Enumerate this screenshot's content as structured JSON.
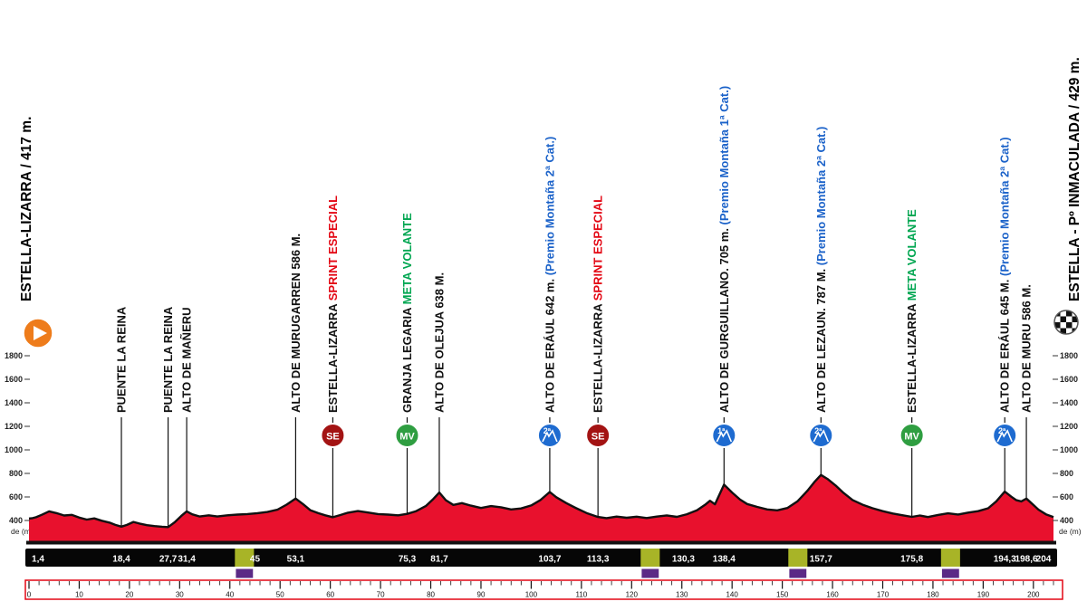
{
  "palette": {
    "profile_fill": "#e8112d",
    "profile_stroke": "#111111",
    "sprint_color": "#e30613",
    "sprint_badge": "#a31313",
    "meta_volante_color": "#00a651",
    "meta_badge": "#2f9e41",
    "mountain_color": "#1b62c9",
    "mountain_badge": "#1e6bd0",
    "feed_zone": "#a8b427",
    "tunnel": "#5b2a86",
    "ruler_border": "#e30613",
    "start_icon": "#ee7c1b"
  },
  "start": {
    "label": "ESTELLA-LIZARRA / 417 m."
  },
  "finish": {
    "label": "ESTELLA - Pº INMACULADA / 429 m."
  },
  "axis": {
    "unit_label": "de (m)",
    "ticks": [
      {
        "label": "1800",
        "value": 1800
      },
      {
        "label": "1600",
        "value": 1600
      },
      {
        "label": "1400",
        "value": 1400
      },
      {
        "label": "1200",
        "value": 1200
      },
      {
        "label": "1000",
        "value": 1000
      },
      {
        "label": "800",
        "value": 800
      },
      {
        "label": "600",
        "value": 600
      },
      {
        "label": "400",
        "value": 400
      }
    ]
  },
  "waypoints": [
    {
      "label": "PUENTE LA REINA",
      "sublabel": "",
      "type": "town",
      "badge": null,
      "km": 18.4
    },
    {
      "label": "PUENTE LA REINA",
      "sublabel": "",
      "type": "town",
      "badge": null,
      "km": 27.7
    },
    {
      "label": "ALTO DE MAÑERU",
      "sublabel": "",
      "type": "town",
      "badge": null,
      "km": 31.4
    },
    {
      "label": "ALTO DE MURUGARREN 586 M.",
      "sublabel": "",
      "type": "town",
      "badge": null,
      "km": 53.1
    },
    {
      "label": "ESTELLA-LIZARRA",
      "sublabel": "SPRINT ESPECIAL",
      "type": "sprint",
      "badge": "SE",
      "km": 60.5
    },
    {
      "label": "GRANJA LEGARIA",
      "sublabel": "META VOLANTE",
      "type": "meta",
      "badge": "MV",
      "km": 75.3
    },
    {
      "label": "ALTO DE OLEJUA 638 M.",
      "sublabel": "",
      "type": "town",
      "badge": null,
      "km": 81.7
    },
    {
      "label": "ALTO DE ERÁUL 642 m.",
      "sublabel": "(Premio Montaña 2ª Cat.)",
      "type": "mountain",
      "badge": "2ª",
      "km": 103.7
    },
    {
      "label": "ESTELLA-LIZARRA",
      "sublabel": "SPRINT ESPECIAL",
      "type": "sprint",
      "badge": "SE",
      "km": 113.3
    },
    {
      "label": "ALTO DE GURGUILLANO. 705 m.",
      "sublabel": "(Premio Montaña 1ª Cat.)",
      "type": "mountain",
      "badge": "1ª",
      "km": 138.4
    },
    {
      "label": "ALTO DE LEZAUN. 787 M.",
      "sublabel": "(Premio Montaña 2ª Cat.)",
      "type": "mountain",
      "badge": "2ª",
      "km": 157.7
    },
    {
      "label": "ESTELLA-LIZARRA",
      "sublabel": "META VOLANTE",
      "type": "meta",
      "badge": "MV",
      "km": 175.8
    },
    {
      "label": "ALTO DE ERÁUL 645 M.",
      "sublabel": "(Premio Montaña 2ª Cat.)",
      "type": "mountain",
      "badge": "2ª",
      "km": 194.3
    },
    {
      "label": "ALTO DE MURU 586 M.",
      "sublabel": "",
      "type": "town",
      "badge": null,
      "km": 198.6
    }
  ],
  "km_bar": {
    "values": [
      {
        "label": "1,4",
        "km": 1.4
      },
      {
        "label": "18,4",
        "km": 18.4
      },
      {
        "label": "27,7",
        "km": 27.7
      },
      {
        "label": "31,4",
        "km": 31.4
      },
      {
        "label": "45",
        "km": 45
      },
      {
        "label": "53,1",
        "km": 53.1
      },
      {
        "label": "75,3",
        "km": 75.3
      },
      {
        "label": "81,7",
        "km": 81.7
      },
      {
        "label": "103,7",
        "km": 103.7
      },
      {
        "label": "113,3",
        "km": 113.3
      },
      {
        "label": "130,3",
        "km": 130.3
      },
      {
        "label": "138,4",
        "km": 138.4
      },
      {
        "label": "157,7",
        "km": 157.7
      },
      {
        "label": "175,8",
        "km": 175.8
      },
      {
        "label": "194,3",
        "km": 194.3
      },
      {
        "label": "198,6",
        "km": 198.6
      },
      {
        "label": "204",
        "km": 204
      }
    ]
  },
  "feed_zones": [
    {
      "from_km": 41,
      "to_km": 44.8
    },
    {
      "from_km": 121.8,
      "to_km": 125.6
    },
    {
      "from_km": 151.2,
      "to_km": 155
    },
    {
      "from_km": 181.6,
      "to_km": 185.4
    }
  ],
  "tunnels": [
    {
      "from_km": 41.2,
      "to_km": 44.6
    },
    {
      "from_km": 122,
      "to_km": 125.4
    },
    {
      "from_km": 151.4,
      "to_km": 154.8
    },
    {
      "from_km": 181.8,
      "to_km": 185.2
    }
  ],
  "ruler": {
    "minor_step_km": 2,
    "major_step_km": 10,
    "labels": [
      0,
      10,
      20,
      30,
      40,
      50,
      60,
      70,
      80,
      90,
      100,
      110,
      120,
      130,
      140,
      150,
      160,
      170,
      180,
      190,
      200
    ]
  },
  "chart_data": {
    "type": "area",
    "x_unit": "km",
    "y_unit": "m",
    "xlim": [
      0,
      204
    ],
    "y_ticks_m": [
      1800,
      1600,
      1400,
      1200,
      1000,
      800,
      600,
      400
    ],
    "start_elevation_m": 417,
    "finish_elevation_m": 429,
    "profile_km_elev": [
      [
        0,
        417
      ],
      [
        0.7,
        420
      ],
      [
        1.4,
        428
      ],
      [
        2.5,
        448
      ],
      [
        4,
        478
      ],
      [
        5.5,
        462
      ],
      [
        7,
        442
      ],
      [
        8.5,
        448
      ],
      [
        10,
        425
      ],
      [
        11.5,
        408
      ],
      [
        13,
        418
      ],
      [
        14.5,
        398
      ],
      [
        16,
        382
      ],
      [
        17.2,
        362
      ],
      [
        18.4,
        348
      ],
      [
        19.5,
        362
      ],
      [
        20.8,
        388
      ],
      [
        22,
        374
      ],
      [
        23.5,
        360
      ],
      [
        25,
        352
      ],
      [
        26.5,
        347
      ],
      [
        27.7,
        344
      ],
      [
        29,
        385
      ],
      [
        30.3,
        438
      ],
      [
        31.4,
        478
      ],
      [
        32.5,
        452
      ],
      [
        34,
        434
      ],
      [
        35.8,
        444
      ],
      [
        37.5,
        434
      ],
      [
        39.5,
        444
      ],
      [
        41.5,
        450
      ],
      [
        43.5,
        455
      ],
      [
        45.5,
        462
      ],
      [
        47.5,
        472
      ],
      [
        49.5,
        492
      ],
      [
        51.3,
        535
      ],
      [
        53.1,
        586
      ],
      [
        54.6,
        538
      ],
      [
        56,
        488
      ],
      [
        57.6,
        462
      ],
      [
        59,
        444
      ],
      [
        60.5,
        428
      ],
      [
        62,
        446
      ],
      [
        63.5,
        466
      ],
      [
        65.5,
        480
      ],
      [
        67.5,
        468
      ],
      [
        69.5,
        455
      ],
      [
        71.5,
        450
      ],
      [
        73.5,
        444
      ],
      [
        75.3,
        456
      ],
      [
        77,
        478
      ],
      [
        79,
        522
      ],
      [
        80.4,
        578
      ],
      [
        81.7,
        638
      ],
      [
        83,
        572
      ],
      [
        84.5,
        532
      ],
      [
        86.2,
        548
      ],
      [
        88,
        526
      ],
      [
        90,
        506
      ],
      [
        92,
        522
      ],
      [
        94,
        512
      ],
      [
        96,
        494
      ],
      [
        98,
        502
      ],
      [
        100,
        528
      ],
      [
        101.8,
        572
      ],
      [
        103.7,
        642
      ],
      [
        105,
        598
      ],
      [
        107,
        548
      ],
      [
        109,
        504
      ],
      [
        111,
        464
      ],
      [
        113.3,
        430
      ],
      [
        115,
        420
      ],
      [
        117,
        433
      ],
      [
        119,
        423
      ],
      [
        121,
        432
      ],
      [
        123,
        421
      ],
      [
        125,
        433
      ],
      [
        127,
        443
      ],
      [
        129,
        431
      ],
      [
        131,
        453
      ],
      [
        133,
        487
      ],
      [
        134.6,
        532
      ],
      [
        135.6,
        568
      ],
      [
        136.6,
        538
      ],
      [
        138.4,
        705
      ],
      [
        140,
        638
      ],
      [
        141.6,
        578
      ],
      [
        143,
        540
      ],
      [
        145,
        515
      ],
      [
        147,
        494
      ],
      [
        149,
        486
      ],
      [
        151,
        506
      ],
      [
        153,
        562
      ],
      [
        155,
        652
      ],
      [
        156.5,
        732
      ],
      [
        157.7,
        787
      ],
      [
        159,
        753
      ],
      [
        160.6,
        698
      ],
      [
        162.2,
        634
      ],
      [
        164,
        574
      ],
      [
        166,
        534
      ],
      [
        168,
        504
      ],
      [
        170,
        479
      ],
      [
        172,
        459
      ],
      [
        174,
        444
      ],
      [
        175.8,
        431
      ],
      [
        177.4,
        442
      ],
      [
        179,
        429
      ],
      [
        181,
        447
      ],
      [
        183,
        461
      ],
      [
        185,
        451
      ],
      [
        187,
        467
      ],
      [
        189,
        479
      ],
      [
        191,
        504
      ],
      [
        192.6,
        562
      ],
      [
        194.3,
        645
      ],
      [
        195.6,
        602
      ],
      [
        196.6,
        572
      ],
      [
        197.6,
        562
      ],
      [
        198.6,
        586
      ],
      [
        199.6,
        548
      ],
      [
        201,
        492
      ],
      [
        202.5,
        452
      ],
      [
        204,
        429
      ]
    ]
  }
}
